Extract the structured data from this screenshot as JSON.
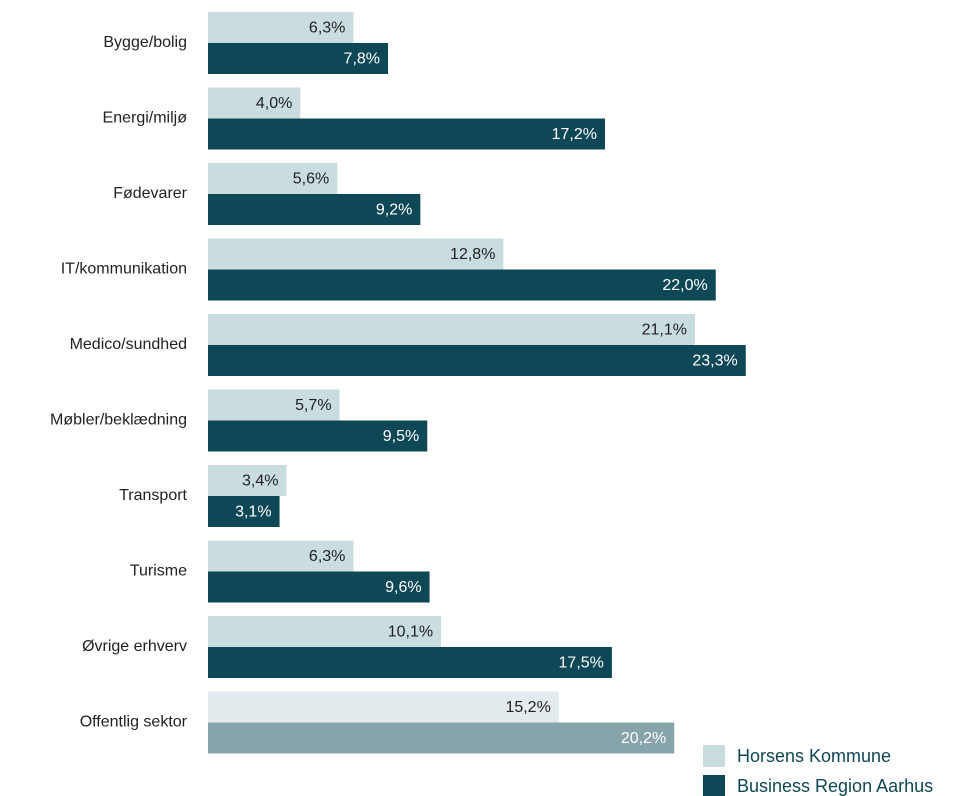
{
  "chart_data": {
    "type": "hbar",
    "categories": [
      "Bygge/bolig",
      "Energi/miljø",
      "Fødevarer",
      "IT/kommunikation",
      "Medico/sundhed",
      "Møbler/beklædning",
      "Transport",
      "Turisme",
      "Øvrige erhverv",
      "Offentlig sektor"
    ],
    "series": [
      {
        "name": "Horsens Kommune",
        "color": "#c9dce0",
        "colors": [
          "#c9dce0",
          "#c9dce0",
          "#c9dce0",
          "#c9dce0",
          "#c9dce0",
          "#c9dce0",
          "#c9dce0",
          "#c9dce0",
          "#c9dce0",
          "#e3ebee"
        ],
        "values": [
          6.3,
          4.0,
          5.6,
          12.8,
          21.1,
          5.7,
          3.4,
          6.3,
          10.1,
          15.2
        ],
        "value_labels": [
          "6,3%",
          "4,0%",
          "5,6%",
          "12,8%",
          "21,1%",
          "5,7%",
          "3,4%",
          "6,3%",
          "10,1%",
          "15,2%"
        ]
      },
      {
        "name": "Business Region Aarhus",
        "color": "#0e4755",
        "colors": [
          "#0e4755",
          "#0e4755",
          "#0e4755",
          "#0e4755",
          "#0e4755",
          "#0e4755",
          "#0e4755",
          "#0e4755",
          "#0e4755",
          "#87a4ab"
        ],
        "values": [
          7.8,
          17.2,
          9.2,
          22.0,
          23.3,
          9.5,
          3.1,
          9.6,
          17.5,
          20.2
        ],
        "value_labels": [
          "7,8%",
          "17,2%",
          "9,2%",
          "22,0%",
          "23,3%",
          "9,5%",
          "3,1%",
          "9,6%",
          "17,5%",
          "20,2%"
        ]
      }
    ],
    "xlim": [
      0,
      25
    ],
    "legend": "lower right"
  }
}
